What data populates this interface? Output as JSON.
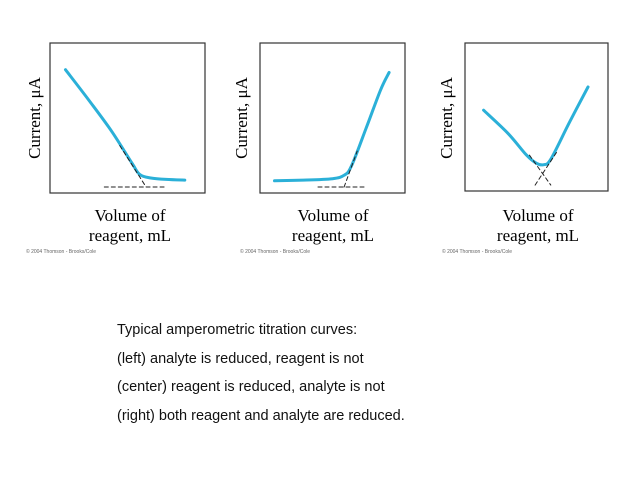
{
  "chart_data": [
    {
      "type": "line",
      "panel": "left",
      "ylabel": "Current, μA",
      "xlabel_line1": "Volume of",
      "xlabel_line2": "reagent, mL",
      "copyright": "© 2004 Thomson - Brooks/Cole",
      "xlim": [
        0,
        10
      ],
      "ylim": [
        0,
        10
      ],
      "series": [
        {
          "name": "curve",
          "color": "#2bb0d8",
          "x": [
            1.0,
            2.5,
            4.0,
            5.3,
            5.8,
            6.5,
            7.5,
            8.7
          ],
          "y": [
            8.5,
            6.3,
            4.0,
            1.7,
            0.9,
            0.65,
            0.55,
            0.5
          ]
        },
        {
          "name": "extrapolation",
          "color": "#222222",
          "dashed": true,
          "x": [
            4.5,
            6.2,
            7.5
          ],
          "y": [
            3.0,
            0.0,
            0.0
          ]
        },
        {
          "name": "extrapolation-2",
          "color": "#222222",
          "dashed": true,
          "x": [
            3.5,
            6.2
          ],
          "y": [
            0.0,
            0.0
          ]
        }
      ]
    },
    {
      "type": "line",
      "panel": "center",
      "ylabel": "Current, μA",
      "xlabel_line1": "Volume of",
      "xlabel_line2": "reagent, mL",
      "copyright": "© 2004 Thomson - Brooks/Cole",
      "xlim": [
        0,
        10
      ],
      "ylim": [
        0,
        10
      ],
      "series": [
        {
          "name": "curve",
          "color": "#2bb0d8",
          "x": [
            1.0,
            3.0,
            5.0,
            5.8,
            6.3,
            7.3,
            8.3,
            8.9
          ],
          "y": [
            0.45,
            0.5,
            0.6,
            0.85,
            1.5,
            4.2,
            7.0,
            8.3
          ]
        },
        {
          "name": "extrapolation",
          "color": "#222222",
          "dashed": true,
          "x": [
            4.0,
            5.8,
            7.2
          ],
          "y": [
            0.0,
            0.0,
            0.0
          ]
        },
        {
          "name": "extrapolation-2",
          "color": "#222222",
          "dashed": true,
          "x": [
            5.8,
            6.7
          ],
          "y": [
            0.0,
            2.6
          ]
        }
      ]
    },
    {
      "type": "line",
      "panel": "right",
      "ylabel": "Current, μA",
      "xlabel_line1": "Volume of",
      "xlabel_line2": "reagent, mL",
      "copyright": "© 2004 Thomson - Brooks/Cole",
      "xlim": [
        0,
        10
      ],
      "ylim": [
        0,
        10
      ],
      "series": [
        {
          "name": "curve",
          "color": "#2bb0d8",
          "x": [
            1.3,
            3.0,
            4.3,
            5.0,
            5.5,
            6.0,
            7.3,
            8.6
          ],
          "y": [
            5.5,
            3.8,
            2.2,
            1.6,
            1.5,
            1.9,
            4.6,
            7.2
          ]
        },
        {
          "name": "extrapolation",
          "color": "#222222",
          "dashed": true,
          "x": [
            4.5,
            6.0
          ],
          "y": [
            2.2,
            0.0
          ]
        },
        {
          "name": "extrapolation-2",
          "color": "#222222",
          "dashed": true,
          "x": [
            4.9,
            6.4
          ],
          "y": [
            0.0,
            2.4
          ]
        }
      ]
    }
  ],
  "caption": {
    "line1": "Typical amperometric titration curves:",
    "line2": "(left) analyte is reduced, reagent is not",
    "line3": "(center) reagent is reduced, analyte is not",
    "line4": "(right) both reagent and analyte are reduced."
  }
}
